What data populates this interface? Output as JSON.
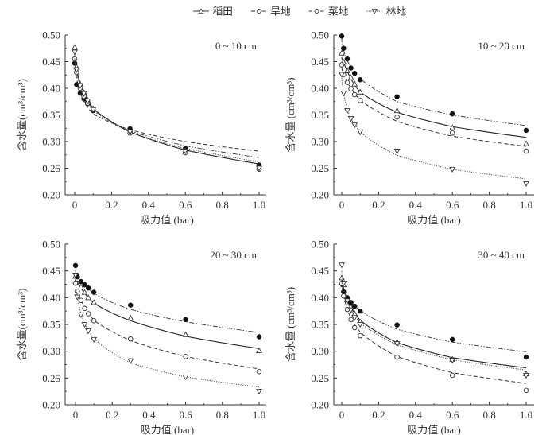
{
  "legend": [
    {
      "name": "稻田",
      "marker": "triangle-up",
      "line": "solid"
    },
    {
      "name": "旱地",
      "marker": "circle-filled",
      "line": "dashdot"
    },
    {
      "name": "菜地",
      "marker": "circle-open",
      "line": "dashed"
    },
    {
      "name": "林地",
      "marker": "triangle-down",
      "line": "dotted"
    }
  ],
  "chart_data": [
    {
      "type": "scatter",
      "title": "0 ~ 10 cm",
      "xlabel": "吸力值 (bar)",
      "ylabel": "含水量(cm³/cm³)",
      "xlim": [
        0,
        1.0
      ],
      "ylim": [
        0.2,
        0.5
      ],
      "xticks": [
        "0",
        "0.2",
        "0.4",
        "0.6",
        "0.8",
        "1.0"
      ],
      "yticks": [
        "0.20",
        "0.25",
        "0.30",
        "0.35",
        "0.40",
        "0.45",
        "0.50"
      ],
      "x": [
        0,
        0.01,
        0.03,
        0.05,
        0.07,
        0.1,
        0.3,
        0.6,
        1.0
      ],
      "series": [
        {
          "name": "稻田",
          "values": [
            0.477,
            0.44,
            0.408,
            0.392,
            0.378,
            0.362,
            0.318,
            0.281,
            0.252
          ],
          "fit": [
            0.462,
            0.437,
            0.41,
            0.392,
            0.378,
            0.362,
            0.318,
            0.284,
            0.258
          ]
        },
        {
          "name": "旱地",
          "values": [
            0.447,
            0.407,
            0.391,
            0.38,
            0.371,
            0.358,
            0.324,
            0.287,
            0.256
          ],
          "fit": [
            0.455,
            0.43,
            0.405,
            0.388,
            0.375,
            0.36,
            0.32,
            0.292,
            0.27
          ]
        },
        {
          "name": "菜地",
          "values": [
            0.455,
            0.43,
            0.4,
            0.385,
            0.372,
            0.36,
            0.316,
            0.279,
            0.248
          ],
          "fit": [
            0.45,
            0.42,
            0.392,
            0.376,
            0.364,
            0.352,
            0.322,
            0.3,
            0.282
          ]
        },
        {
          "name": "林地",
          "values": [
            0.468,
            0.435,
            0.405,
            0.39,
            0.376,
            0.36,
            0.318,
            0.282,
            0.25
          ],
          "fit": [
            0.46,
            0.432,
            0.405,
            0.388,
            0.374,
            0.358,
            0.318,
            0.287,
            0.262
          ]
        }
      ]
    },
    {
      "type": "scatter",
      "title": "10 ~ 20 cm",
      "xlabel": "吸力值 (bar)",
      "ylabel": "含水量 (cm³/cm³)",
      "xlim": [
        0,
        1.0
      ],
      "ylim": [
        0.2,
        0.5
      ],
      "xticks": [
        "0",
        "0.2",
        "0.4",
        "0.6",
        "0.8",
        "1.0"
      ],
      "yticks": [
        "0.20",
        "0.25",
        "0.30",
        "0.35",
        "0.40",
        "0.45",
        "0.50"
      ],
      "x": [
        0,
        0.01,
        0.03,
        0.05,
        0.07,
        0.1,
        0.3,
        0.6,
        1.0
      ],
      "series": [
        {
          "name": "稻田",
          "values": [
            0.466,
            0.449,
            0.433,
            0.42,
            0.408,
            0.393,
            0.358,
            0.326,
            0.296
          ],
          "fit": [
            0.458,
            0.45,
            0.432,
            0.418,
            0.406,
            0.393,
            0.355,
            0.328,
            0.308
          ]
        },
        {
          "name": "旱地",
          "values": [
            0.498,
            0.475,
            0.455,
            0.438,
            0.428,
            0.416,
            0.384,
            0.352,
            0.321
          ],
          "fit": [
            0.495,
            0.472,
            0.452,
            0.44,
            0.43,
            0.418,
            0.375,
            0.35,
            0.33
          ]
        },
        {
          "name": "菜地",
          "values": [
            0.444,
            0.426,
            0.411,
            0.399,
            0.388,
            0.377,
            0.346,
            0.316,
            0.282
          ],
          "fit": [
            0.44,
            0.428,
            0.412,
            0.4,
            0.39,
            0.378,
            0.338,
            0.31,
            0.291
          ]
        },
        {
          "name": "林地",
          "values": [
            0.426,
            0.391,
            0.358,
            0.343,
            0.331,
            0.318,
            0.282,
            0.248,
            0.221
          ],
          "fit": [
            0.428,
            0.392,
            0.36,
            0.344,
            0.332,
            0.318,
            0.274,
            0.248,
            0.23
          ]
        }
      ]
    },
    {
      "type": "scatter",
      "title": "20 ~ 30 cm",
      "xlabel": "吸力值 (bar)",
      "ylabel": "含水量(cm³/cm³)",
      "xlim": [
        0,
        1.0
      ],
      "ylim": [
        0.2,
        0.5
      ],
      "xticks": [
        "0",
        "0.2",
        "0.4",
        "0.6",
        "0.8",
        "1.0"
      ],
      "yticks": [
        "0.20",
        "0.25",
        "0.30",
        "0.35",
        "0.40",
        "0.45",
        "0.50"
      ],
      "x": [
        0,
        0.01,
        0.03,
        0.05,
        0.07,
        0.1,
        0.3,
        0.6,
        1.0
      ],
      "series": [
        {
          "name": "稻田",
          "values": [
            0.44,
            0.435,
            0.42,
            0.41,
            0.4,
            0.391,
            0.362,
            0.331,
            0.301
          ],
          "fit": [
            0.44,
            0.43,
            0.418,
            0.408,
            0.4,
            0.39,
            0.357,
            0.328,
            0.305
          ]
        },
        {
          "name": "旱地",
          "values": [
            0.46,
            0.439,
            0.43,
            0.424,
            0.418,
            0.41,
            0.386,
            0.359,
            0.327
          ],
          "fit": [
            0.452,
            0.44,
            0.43,
            0.423,
            0.417,
            0.408,
            0.378,
            0.355,
            0.335
          ]
        },
        {
          "name": "菜地",
          "values": [
            0.427,
            0.412,
            0.395,
            0.38,
            0.37,
            0.357,
            0.323,
            0.29,
            0.262
          ],
          "fit": [
            0.428,
            0.415,
            0.396,
            0.382,
            0.371,
            0.358,
            0.32,
            0.29,
            0.267
          ]
        },
        {
          "name": "林地",
          "values": [
            0.442,
            0.401,
            0.368,
            0.35,
            0.338,
            0.322,
            0.282,
            0.252,
            0.225
          ],
          "fit": [
            0.44,
            0.402,
            0.37,
            0.352,
            0.339,
            0.323,
            0.278,
            0.252,
            0.233
          ]
        }
      ]
    },
    {
      "type": "scatter",
      "title": "30 ~ 40 cm",
      "xlabel": "吸力值 (bar)",
      "ylabel": "含水量 (cm³/cm³)",
      "xlim": [
        0,
        1.0
      ],
      "ylim": [
        0.2,
        0.5
      ],
      "xticks": [
        "0",
        "0.2",
        "0.4",
        "0.6",
        "0.8",
        "1.0"
      ],
      "yticks": [
        "0.20",
        "0.25",
        "0.30",
        "0.35",
        "0.40",
        "0.45",
        "0.50"
      ],
      "x": [
        0,
        0.01,
        0.03,
        0.05,
        0.07,
        0.1,
        0.3,
        0.6,
        1.0
      ],
      "series": [
        {
          "name": "稻田",
          "values": [
            0.437,
            0.424,
            0.396,
            0.382,
            0.37,
            0.355,
            0.317,
            0.285,
            0.258
          ],
          "fit": [
            0.44,
            0.418,
            0.395,
            0.382,
            0.371,
            0.358,
            0.316,
            0.288,
            0.269
          ]
        },
        {
          "name": "旱地",
          "values": [
            0.426,
            0.411,
            0.4,
            0.391,
            0.384,
            0.375,
            0.349,
            0.322,
            0.289
          ],
          "fit": [
            0.428,
            0.413,
            0.4,
            0.392,
            0.385,
            0.376,
            0.341,
            0.317,
            0.299
          ]
        },
        {
          "name": "菜地",
          "values": [
            0.427,
            0.403,
            0.378,
            0.359,
            0.344,
            0.329,
            0.289,
            0.255,
            0.227
          ],
          "fit": [
            0.43,
            0.404,
            0.378,
            0.362,
            0.35,
            0.336,
            0.29,
            0.26,
            0.24
          ]
        },
        {
          "name": "林地",
          "values": [
            0.461,
            0.427,
            0.394,
            0.377,
            0.363,
            0.35,
            0.314,
            0.283,
            0.255
          ],
          "fit": [
            0.45,
            0.42,
            0.392,
            0.378,
            0.367,
            0.353,
            0.312,
            0.284,
            0.265
          ]
        }
      ]
    }
  ]
}
